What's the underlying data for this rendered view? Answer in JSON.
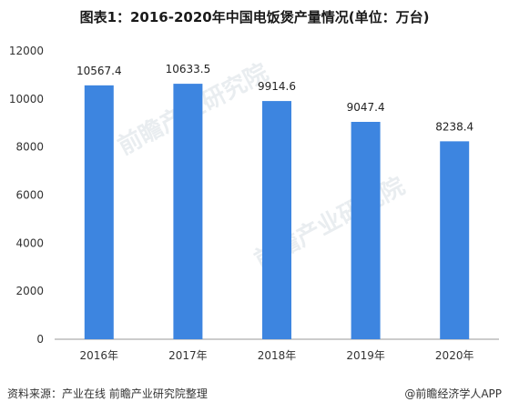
{
  "chart_data": {
    "type": "bar",
    "title": "图表1：2016-2020年中国电饭煲产量情况(单位：万台)",
    "categories": [
      "2016年",
      "2017年",
      "2018年",
      "2019年",
      "2020年"
    ],
    "values": [
      10567.4,
      10633.5,
      9914.6,
      9047.4,
      8238.4
    ],
    "value_labels": [
      "10567.4",
      "10633.5",
      "9914.6",
      "9047.4",
      "8238.4"
    ],
    "y_ticks": [
      "0",
      "2000",
      "4000",
      "6000",
      "8000",
      "10000",
      "12000"
    ],
    "ylim": [
      0,
      12000
    ],
    "bar_color": "#3d85e0",
    "grid": false,
    "legend": "none"
  },
  "footer": {
    "source": "资料来源：产业在线 前瞻产业研究院整理",
    "brand": "@前瞻经济学人APP"
  },
  "watermark": "前瞻产业研究院"
}
